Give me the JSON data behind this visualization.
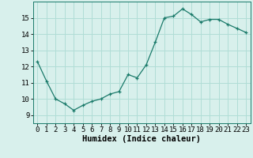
{
  "x": [
    0,
    1,
    2,
    3,
    4,
    5,
    6,
    7,
    8,
    9,
    10,
    11,
    12,
    13,
    14,
    15,
    16,
    17,
    18,
    19,
    20,
    21,
    22,
    23
  ],
  "y": [
    12.3,
    11.1,
    10.0,
    9.7,
    9.3,
    9.6,
    9.85,
    10.0,
    10.3,
    10.45,
    11.5,
    11.3,
    12.1,
    13.5,
    15.0,
    15.1,
    15.55,
    15.2,
    14.75,
    14.9,
    14.9,
    14.6,
    14.35,
    14.1
  ],
  "xlabel": "Humidex (Indice chaleur)",
  "ylim": [
    8.5,
    16.0
  ],
  "xlim": [
    -0.5,
    23.5
  ],
  "yticks": [
    9,
    10,
    11,
    12,
    13,
    14,
    15
  ],
  "xticks": [
    0,
    1,
    2,
    3,
    4,
    5,
    6,
    7,
    8,
    9,
    10,
    11,
    12,
    13,
    14,
    15,
    16,
    17,
    18,
    19,
    20,
    21,
    22,
    23
  ],
  "line_color": "#1a7a6a",
  "marker": "+",
  "marker_size": 3,
  "bg_color": "#d8f0ec",
  "grid_color": "#b0ddd6",
  "tick_label_fontsize": 6.5,
  "xlabel_fontsize": 7.5
}
